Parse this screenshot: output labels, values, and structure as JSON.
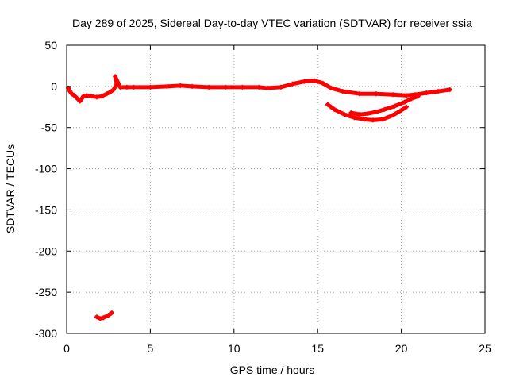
{
  "chart_data": {
    "type": "scatter",
    "title": "Day 289 of 2025, Sidereal Day-to-day VTEC variation (SDTVAR) for receiver ssia",
    "xlabel": "GPS time / hours",
    "ylabel": "SDTVAR / TECUs",
    "xlim": [
      0,
      25
    ],
    "ylim": [
      -300,
      50
    ],
    "xticks": [
      0,
      5,
      10,
      15,
      20,
      25
    ],
    "yticks": [
      50,
      0,
      -50,
      -100,
      -150,
      -200,
      -250,
      -300
    ],
    "grid": true,
    "series_color": "#ff0000",
    "series": [
      {
        "points": [
          [
            0.1,
            -2
          ],
          [
            0.2,
            -6
          ],
          [
            0.3,
            -9
          ],
          [
            0.45,
            -11
          ],
          [
            0.6,
            -14
          ],
          [
            0.8,
            -18
          ],
          [
            1.0,
            -12
          ],
          [
            1.2,
            -11
          ],
          [
            1.5,
            -12
          ],
          [
            1.8,
            -13
          ],
          [
            2.1,
            -12
          ],
          [
            2.4,
            -9
          ],
          [
            2.6,
            -7
          ],
          [
            2.8,
            -4
          ],
          [
            3.0,
            3
          ],
          [
            2.9,
            12
          ],
          [
            3.2,
            -1
          ],
          [
            3.6,
            -1
          ],
          [
            4.0,
            -1
          ],
          [
            5.0,
            -1
          ],
          [
            6.0,
            0
          ],
          [
            6.8,
            1
          ],
          [
            7.5,
            0
          ],
          [
            8.5,
            -1
          ],
          [
            9.5,
            -1
          ],
          [
            10.5,
            -1
          ],
          [
            11.5,
            -1
          ],
          [
            12.0,
            -2
          ],
          [
            12.8,
            -1
          ],
          [
            13.5,
            3
          ],
          [
            14.2,
            6
          ],
          [
            14.8,
            7
          ],
          [
            15.3,
            4
          ],
          [
            15.8,
            -2
          ],
          [
            16.5,
            -6
          ],
          [
            17.5,
            -9
          ],
          [
            18.5,
            -9
          ],
          [
            19.5,
            -10
          ],
          [
            20.3,
            -11
          ],
          [
            20.8,
            -10
          ],
          [
            21.5,
            -8
          ],
          [
            22.2,
            -6
          ],
          [
            22.9,
            -4
          ]
        ]
      },
      {
        "points": [
          [
            15.6,
            -22
          ],
          [
            16.0,
            -28
          ],
          [
            16.6,
            -34
          ],
          [
            17.2,
            -38
          ],
          [
            17.8,
            -40
          ],
          [
            18.3,
            -41
          ],
          [
            18.9,
            -40
          ],
          [
            19.5,
            -35
          ],
          [
            20.0,
            -29
          ],
          [
            20.3,
            -25
          ]
        ]
      },
      {
        "points": [
          [
            17.0,
            -32
          ],
          [
            17.5,
            -34
          ],
          [
            18.0,
            -33
          ],
          [
            18.5,
            -31
          ],
          [
            19.0,
            -28
          ],
          [
            19.6,
            -24
          ],
          [
            20.2,
            -19
          ],
          [
            20.6,
            -15
          ],
          [
            21.0,
            -12
          ]
        ]
      },
      {
        "points": [
          [
            1.8,
            -280
          ],
          [
            2.0,
            -282
          ],
          [
            2.2,
            -281
          ],
          [
            2.5,
            -278
          ],
          [
            2.7,
            -275
          ]
        ]
      }
    ]
  }
}
